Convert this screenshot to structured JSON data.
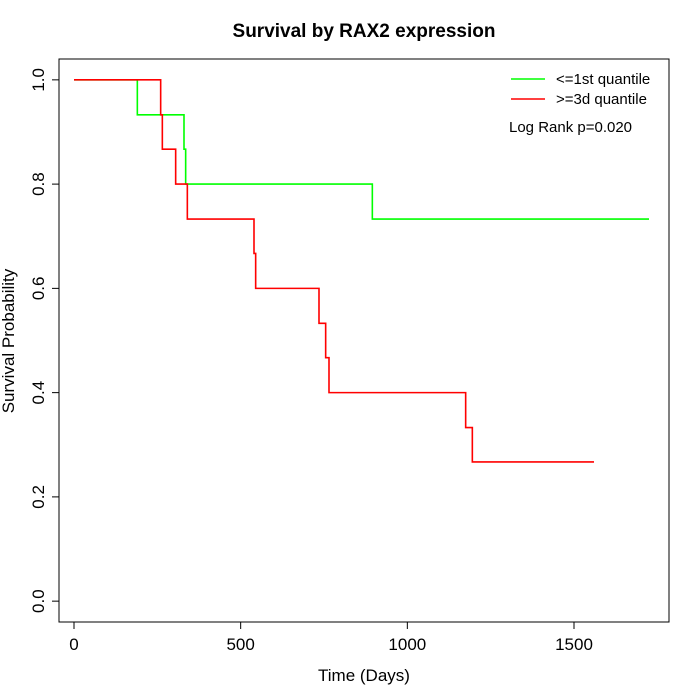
{
  "chart_data": {
    "type": "line",
    "title": "Survival by RAX2 expression",
    "xlabel": "Time (Days)",
    "ylabel": "Survival Probability",
    "xlim": [
      -45,
      1785
    ],
    "ylim": [
      -0.04,
      1.04
    ],
    "x_ticks": [
      0,
      500,
      1000,
      1500
    ],
    "y_ticks": [
      0.0,
      0.2,
      0.4,
      0.6,
      0.8,
      1.0
    ],
    "x_tick_labels": [
      "0",
      "500",
      "1000",
      "1500"
    ],
    "y_tick_labels": [
      "0.0",
      "0.2",
      "0.4",
      "0.6",
      "0.8",
      "1.0"
    ],
    "grid": false,
    "legend_position": "top-right",
    "annotation": "Log Rank p=0.020",
    "series": [
      {
        "name": "<=1st quantile",
        "color": "#00ff00",
        "step": true,
        "x": [
          0,
          190,
          330,
          335,
          895,
          1725
        ],
        "y": [
          1.0,
          0.933,
          0.867,
          0.8,
          0.733,
          0.733
        ]
      },
      {
        "name": ">=3d quantile",
        "color": "#ff0000",
        "step": true,
        "x": [
          0,
          260,
          265,
          305,
          340,
          540,
          545,
          735,
          755,
          765,
          1175,
          1195,
          1560
        ],
        "y": [
          1.0,
          0.933,
          0.867,
          0.8,
          0.733,
          0.667,
          0.6,
          0.533,
          0.467,
          0.4,
          0.333,
          0.267,
          0.267
        ]
      }
    ]
  }
}
